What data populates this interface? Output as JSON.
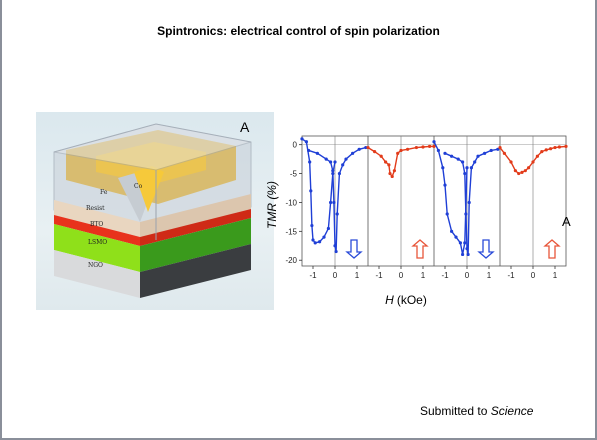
{
  "slide": {
    "title": "Spintronics: electrical control of spin polarization",
    "footer_prefix": "Submitted to ",
    "footer_journal": "Science"
  },
  "device_figure": {
    "panel_label": "A",
    "layers": [
      "Fe",
      "Co",
      "Resist",
      "BTO",
      "LSMO",
      "NGO"
    ]
  },
  "chart_data": {
    "type": "line",
    "panel_label": "A",
    "ylabel": "TMR (%)",
    "xlabel_var": "H",
    "xlabel_unit": "(kOe)",
    "ylim": [
      -21,
      1.5
    ],
    "xlim": [
      -1.5,
      1.5
    ],
    "yticks": [
      0,
      -5,
      -10,
      -15,
      -20
    ],
    "xticks": [
      -1,
      0,
      1
    ],
    "panels": [
      {
        "color": "#1f3fd6",
        "arrow": "down",
        "arrow_color": "#2a4bd8",
        "series": [
          {
            "x": [
              -1.5,
              -1.3,
              -1.15,
              -1.1,
              -1.05,
              -1.0,
              -0.9,
              -0.7,
              -0.5,
              -0.3,
              -0.2,
              -0.1,
              0.0
            ],
            "y": [
              1,
              0.5,
              -3,
              -8,
              -14,
              -16.5,
              -17,
              -16.8,
              -16,
              -14.5,
              -10,
              -5,
              -3
            ]
          },
          {
            "x": [
              -1.2,
              -0.8,
              -0.4,
              -0.2,
              -0.1,
              -0.05,
              0.0,
              0.05,
              0.1,
              0.2,
              0.35,
              0.5,
              0.8,
              1.1,
              1.4
            ],
            "y": [
              -1,
              -1.5,
              -2.5,
              -3,
              -4.5,
              -10,
              -17.5,
              -18.5,
              -12,
              -5,
              -3.5,
              -2.5,
              -1.5,
              -0.8,
              -0.5
            ]
          }
        ]
      },
      {
        "color": "#e23b1a",
        "arrow": "up",
        "arrow_color": "#e8563a",
        "series": [
          {
            "x": [
              -1.5,
              -1.2,
              -0.9,
              -0.7,
              -0.55,
              -0.5,
              -0.4,
              -0.3,
              -0.15,
              0.0,
              0.3,
              0.7,
              1.0,
              1.3,
              1.5
            ],
            "y": [
              -0.5,
              -1.2,
              -2,
              -3,
              -3.5,
              -5,
              -5.5,
              -4.5,
              -1.5,
              -1,
              -0.8,
              -0.5,
              -0.4,
              -0.3,
              -0.3
            ]
          }
        ]
      },
      {
        "color": "#1f3fd6",
        "arrow": "down",
        "arrow_color": "#2a4bd8",
        "series": [
          {
            "x": [
              -1.5,
              -1.3,
              -1.1,
              -1.0,
              -0.9,
              -0.7,
              -0.5,
              -0.3,
              -0.2,
              -0.1,
              0.0
            ],
            "y": [
              0.5,
              -1,
              -4,
              -7,
              -12,
              -15,
              -16,
              -17,
              -19,
              -17,
              -4
            ]
          },
          {
            "x": [
              -1.0,
              -0.7,
              -0.4,
              -0.2,
              -0.1,
              -0.05,
              0.0,
              0.05,
              0.1,
              0.2,
              0.35,
              0.5,
              0.8,
              1.1,
              1.4
            ],
            "y": [
              -1.5,
              -2,
              -2.5,
              -3,
              -5,
              -12,
              -18,
              -19,
              -10,
              -4,
              -3,
              -2,
              -1.5,
              -1,
              -0.8
            ]
          }
        ]
      },
      {
        "color": "#e23b1a",
        "arrow": "up",
        "arrow_color": "#e8563a",
        "series": [
          {
            "x": [
              -1.5,
              -1.3,
              -1.0,
              -0.8,
              -0.65,
              -0.5,
              -0.35,
              -0.2,
              0.0,
              0.2,
              0.4,
              0.6,
              0.8,
              1.0,
              1.2,
              1.5
            ],
            "y": [
              -0.5,
              -1.5,
              -3,
              -4.5,
              -5,
              -4.8,
              -4.5,
              -4,
              -3,
              -2,
              -1.2,
              -0.9,
              -0.7,
              -0.5,
              -0.4,
              -0.3
            ]
          }
        ]
      }
    ]
  }
}
